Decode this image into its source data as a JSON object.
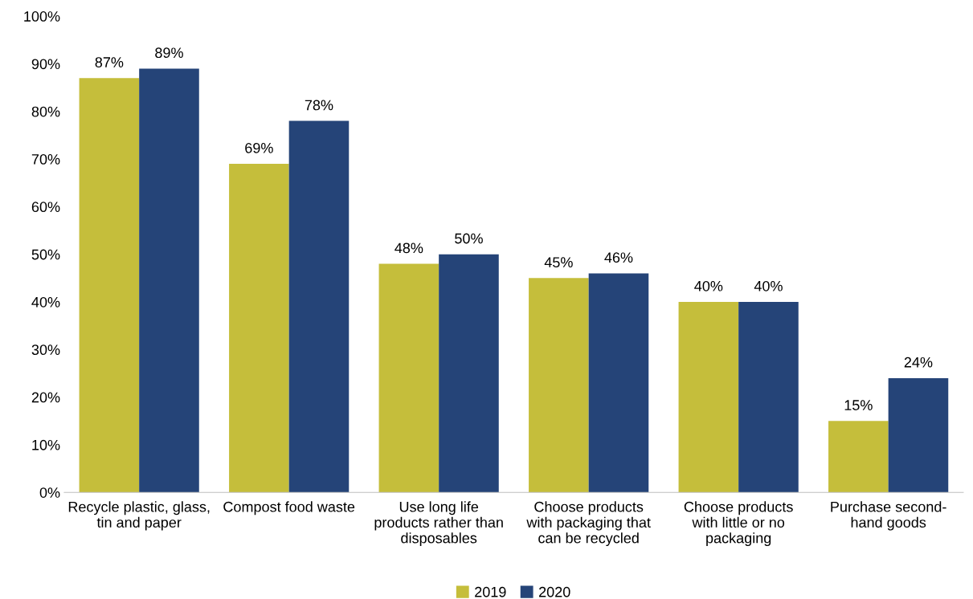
{
  "chart_data": {
    "type": "bar",
    "categories": [
      "Recycle plastic, glass,\ntin and paper",
      "Compost food waste",
      "Use long life\nproducts rather than\ndisposables",
      "Choose products\nwith packaging that\ncan be recycled",
      "Choose products\nwith little or no\npackaging",
      "Purchase second-\nhand goods"
    ],
    "series": [
      {
        "name": "2019",
        "color": "#c5be3b",
        "values": [
          87,
          69,
          48,
          45,
          40,
          15
        ],
        "value_labels": [
          "87%",
          "69%",
          "48%",
          "45%",
          "40%",
          "15%"
        ]
      },
      {
        "name": "2020",
        "color": "#254478",
        "values": [
          89,
          78,
          50,
          46,
          40,
          24
        ],
        "value_labels": [
          "89%",
          "78%",
          "50%",
          "46%",
          "40%",
          "24%"
        ]
      }
    ],
    "ylim": [
      0,
      100
    ],
    "yticks": [
      {
        "value": 0,
        "label": "0%"
      },
      {
        "value": 10,
        "label": "10%"
      },
      {
        "value": 20,
        "label": "20%"
      },
      {
        "value": 30,
        "label": "30%"
      },
      {
        "value": 40,
        "label": "40%"
      },
      {
        "value": 50,
        "label": "50%"
      },
      {
        "value": 60,
        "label": "60%"
      },
      {
        "value": 70,
        "label": "70%"
      },
      {
        "value": 80,
        "label": "80%"
      },
      {
        "value": 90,
        "label": "90%"
      },
      {
        "value": 100,
        "label": "100%"
      }
    ],
    "grid": false,
    "legend": "bottom"
  }
}
